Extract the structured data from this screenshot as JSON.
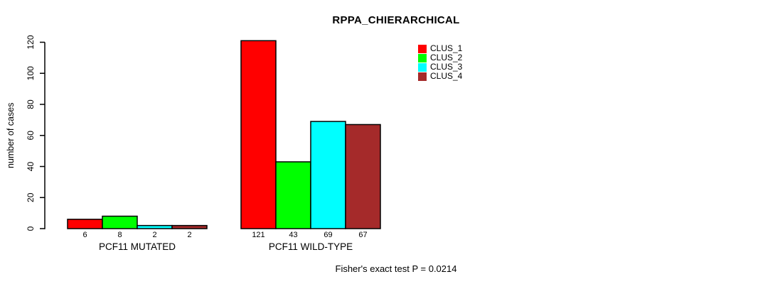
{
  "chart_data": {
    "type": "bar",
    "title": "RPPA_CHIERARCHICAL",
    "ylabel": "number of cases",
    "xlabel": "",
    "ylim": [
      0,
      120
    ],
    "yticks": [
      0,
      20,
      40,
      60,
      80,
      100,
      120
    ],
    "categories": [
      "PCF11 MUTATED",
      "PCF11 WILD-TYPE"
    ],
    "series": [
      {
        "name": "CLUS_1",
        "color": "#FF0000",
        "values": [
          6,
          121
        ]
      },
      {
        "name": "CLUS_2",
        "color": "#00FF00",
        "values": [
          8,
          43
        ]
      },
      {
        "name": "CLUS_3",
        "color": "#00FFFF",
        "values": [
          2,
          69
        ]
      },
      {
        "name": "CLUS_4",
        "color": "#A52A2A",
        "values": [
          2,
          67
        ]
      }
    ],
    "bar_value_labels": [
      [
        6,
        8,
        2,
        2
      ],
      [
        121,
        43,
        69,
        67
      ]
    ],
    "legend_position": "top-right",
    "grid": false,
    "axis_color": "#000000",
    "annotation": "Fisher's exact test P = 0.0214"
  }
}
